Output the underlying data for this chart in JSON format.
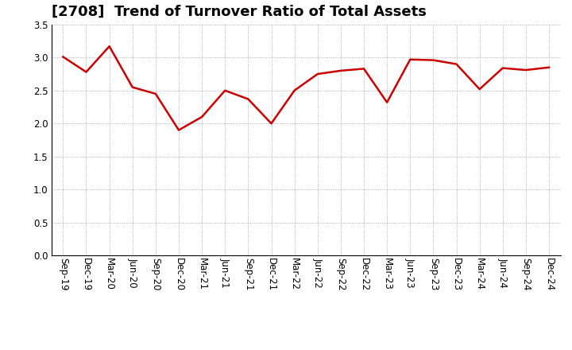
{
  "title": "[2708]  Trend of Turnover Ratio of Total Assets",
  "labels": [
    "Sep-19",
    "Dec-19",
    "Mar-20",
    "Jun-20",
    "Sep-20",
    "Dec-20",
    "Mar-21",
    "Jun-21",
    "Sep-21",
    "Dec-21",
    "Mar-22",
    "Jun-22",
    "Sep-22",
    "Dec-22",
    "Mar-23",
    "Jun-23",
    "Sep-23",
    "Dec-23",
    "Mar-24",
    "Jun-24",
    "Sep-24",
    "Dec-24"
  ],
  "values": [
    3.01,
    2.78,
    3.17,
    2.55,
    2.45,
    1.9,
    2.1,
    2.5,
    2.37,
    2.0,
    2.5,
    2.75,
    2.8,
    2.83,
    2.32,
    2.97,
    2.96,
    2.9,
    2.52,
    2.84,
    2.81,
    2.85
  ],
  "line_color": "#CC0000",
  "line_width": 1.8,
  "ylim": [
    0.0,
    3.5
  ],
  "yticks": [
    0.0,
    0.5,
    1.0,
    1.5,
    2.0,
    2.5,
    3.0,
    3.5
  ],
  "title_fontsize": 13,
  "tick_fontsize": 8.5,
  "background_color": "#ffffff",
  "grid_color": "#999999",
  "title_color": "#000000",
  "title_fontweight": "bold"
}
